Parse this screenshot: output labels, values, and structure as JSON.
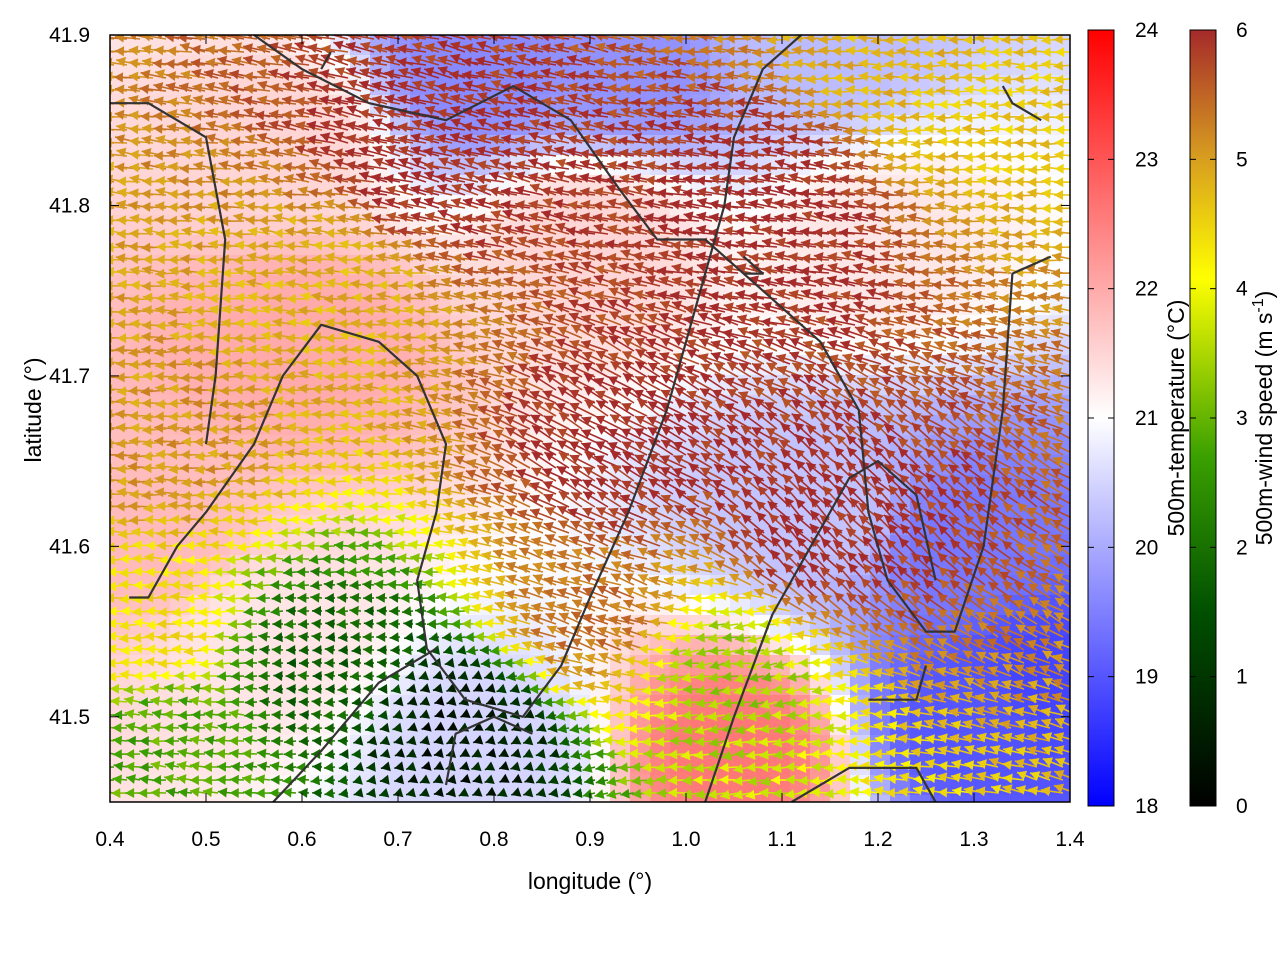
{
  "chart_data": {
    "type": "heatmap",
    "title": "",
    "xlabel": "longitude (°)",
    "ylabel": "latitude (°)",
    "xlim": [
      0.4,
      1.4
    ],
    "ylim": [
      41.45,
      41.9
    ],
    "x_ticks": [
      "0.4",
      "0.5",
      "0.6",
      "0.7",
      "0.8",
      "0.9",
      "1.0",
      "1.1",
      "1.2",
      "1.3",
      "1.4"
    ],
    "y_ticks": [
      "41.5",
      "41.6",
      "41.7",
      "41.8",
      "41.9"
    ],
    "overlay": "wind vectors (arrowheads point toward westward flow), colored by wind speed",
    "background_field": "500m temperature",
    "colorbars": [
      {
        "label": "500m-temperature (°C)",
        "range": [
          18,
          24
        ],
        "ticks": [
          "18",
          "19",
          "20",
          "21",
          "22",
          "23",
          "24"
        ],
        "colors": [
          "#0000ff",
          "#ffffff",
          "#ff0000"
        ]
      },
      {
        "label_main": "500m-wind speed (m s",
        "label_sup": "-1",
        "label_end": ")",
        "range": [
          0,
          6
        ],
        "ticks": [
          "0",
          "1",
          "2",
          "3",
          "4",
          "5",
          "6"
        ],
        "colors": [
          "#000000",
          "#006400",
          "#32cd32",
          "#ffff00",
          "#daa520",
          "#a52a2a"
        ]
      }
    ],
    "contour_color": "#333333",
    "temperature_regions": [
      {
        "lon": 0.78,
        "lat": 41.88,
        "t": 19.6
      },
      {
        "lon": 0.95,
        "lat": 41.88,
        "t": 19.7
      },
      {
        "lon": 1.12,
        "lat": 41.89,
        "t": 20.2
      },
      {
        "lon": 0.58,
        "lat": 41.84,
        "t": 21.5
      },
      {
        "lon": 0.9,
        "lat": 41.78,
        "t": 21.5
      },
      {
        "lon": 1.2,
        "lat": 41.78,
        "t": 21.3
      },
      {
        "lon": 0.6,
        "lat": 41.72,
        "t": 22.0
      },
      {
        "lon": 0.45,
        "lat": 41.6,
        "t": 21.8
      },
      {
        "lon": 0.55,
        "lat": 41.55,
        "t": 21.3
      },
      {
        "lon": 0.8,
        "lat": 41.48,
        "t": 20.5
      },
      {
        "lon": 1.05,
        "lat": 41.48,
        "t": 22.6
      },
      {
        "lon": 1.28,
        "lat": 41.6,
        "t": 19.4
      },
      {
        "lon": 1.3,
        "lat": 41.5,
        "t": 19.0
      },
      {
        "lon": 1.38,
        "lat": 41.52,
        "t": 18.8
      },
      {
        "lon": 1.15,
        "lat": 41.62,
        "t": 20.3
      }
    ],
    "wind_regions": [
      {
        "lon": 0.75,
        "lat": 41.82,
        "s": 6.0,
        "dir": 195
      },
      {
        "lon": 1.1,
        "lat": 41.8,
        "s": 6.0,
        "dir": 190
      },
      {
        "lon": 0.95,
        "lat": 41.65,
        "s": 6.0,
        "dir": 210
      },
      {
        "lon": 1.15,
        "lat": 41.6,
        "s": 6.0,
        "dir": 225
      },
      {
        "lon": 0.47,
        "lat": 41.66,
        "s": 4.8,
        "dir": 180
      },
      {
        "lon": 0.65,
        "lat": 41.75,
        "s": 4.5,
        "dir": 185
      },
      {
        "lon": 0.45,
        "lat": 41.55,
        "s": 4.0,
        "dir": 180
      },
      {
        "lon": 0.47,
        "lat": 41.49,
        "s": 2.5,
        "dir": 185
      },
      {
        "lon": 0.62,
        "lat": 41.53,
        "s": 1.5,
        "dir": 180
      },
      {
        "lon": 0.77,
        "lat": 41.49,
        "s": 0.4,
        "dir": 160
      },
      {
        "lon": 1.05,
        "lat": 41.53,
        "s": 3.0,
        "dir": 170
      },
      {
        "lon": 0.92,
        "lat": 41.56,
        "s": 5.2,
        "dir": 200
      },
      {
        "lon": 1.32,
        "lat": 41.87,
        "s": 4.2,
        "dir": 180
      },
      {
        "lon": 1.25,
        "lat": 41.89,
        "s": 4.5,
        "dir": 180
      }
    ],
    "contours": [
      [
        [
          0.42,
          41.57
        ],
        [
          0.44,
          41.57
        ],
        [
          0.47,
          41.6
        ],
        [
          0.5,
          41.62
        ],
        [
          0.55,
          41.66
        ],
        [
          0.58,
          41.7
        ],
        [
          0.62,
          41.73
        ],
        [
          0.68,
          41.72
        ],
        [
          0.72,
          41.7
        ],
        [
          0.75,
          41.66
        ],
        [
          0.74,
          41.62
        ],
        [
          0.72,
          41.58
        ],
        [
          0.73,
          41.54
        ],
        [
          0.77,
          41.51
        ],
        [
          0.83,
          41.5
        ],
        [
          0.87,
          41.53
        ],
        [
          0.9,
          41.57
        ],
        [
          0.94,
          41.62
        ],
        [
          0.98,
          41.68
        ],
        [
          1.0,
          41.72
        ],
        [
          1.02,
          41.76
        ],
        [
          1.04,
          41.8
        ],
        [
          1.05,
          41.84
        ],
        [
          1.08,
          41.88
        ],
        [
          1.12,
          41.9
        ]
      ],
      [
        [
          0.5,
          41.66
        ],
        [
          0.51,
          41.7
        ],
        [
          0.52,
          41.78
        ],
        [
          0.5,
          41.84
        ],
        [
          0.44,
          41.86
        ],
        [
          0.4,
          41.86
        ]
      ],
      [
        [
          0.55,
          41.9
        ],
        [
          0.6,
          41.88
        ],
        [
          0.67,
          41.86
        ],
        [
          0.75,
          41.85
        ],
        [
          0.82,
          41.87
        ],
        [
          0.88,
          41.85
        ],
        [
          0.93,
          41.81
        ],
        [
          0.97,
          41.78
        ],
        [
          1.02,
          41.78
        ],
        [
          1.06,
          41.76
        ],
        [
          1.1,
          41.74
        ],
        [
          1.14,
          41.72
        ],
        [
          1.18,
          41.68
        ],
        [
          1.19,
          41.62
        ],
        [
          1.21,
          41.58
        ],
        [
          1.25,
          41.55
        ],
        [
          1.28,
          41.55
        ],
        [
          1.31,
          41.6
        ],
        [
          1.33,
          41.68
        ],
        [
          1.34,
          41.76
        ],
        [
          1.38,
          41.77
        ]
      ],
      [
        [
          0.57,
          41.45
        ],
        [
          0.62,
          41.48
        ],
        [
          0.68,
          41.52
        ],
        [
          0.74,
          41.54
        ]
      ],
      [
        [
          1.02,
          41.45
        ],
        [
          1.05,
          41.5
        ],
        [
          1.09,
          41.56
        ],
        [
          1.13,
          41.6
        ],
        [
          1.17,
          41.64
        ],
        [
          1.2,
          41.65
        ],
        [
          1.24,
          41.63
        ],
        [
          1.26,
          41.58
        ]
      ],
      [
        [
          1.11,
          41.45
        ],
        [
          1.17,
          41.47
        ],
        [
          1.24,
          41.47
        ],
        [
          1.26,
          41.45
        ]
      ],
      [
        [
          0.75,
          41.46
        ],
        [
          0.76,
          41.49
        ],
        [
          0.8,
          41.5
        ],
        [
          0.84,
          41.49
        ]
      ],
      [
        [
          1.19,
          41.51
        ],
        [
          1.24,
          41.51
        ],
        [
          1.25,
          41.53
        ]
      ],
      [
        [
          1.33,
          41.87
        ],
        [
          1.34,
          41.86
        ],
        [
          1.37,
          41.85
        ]
      ],
      [
        [
          0.62,
          41.88
        ],
        [
          0.63,
          41.89
        ]
      ],
      [
        [
          1.06,
          41.76
        ],
        [
          1.08,
          41.76
        ],
        [
          1.06,
          41.77
        ]
      ]
    ]
  }
}
